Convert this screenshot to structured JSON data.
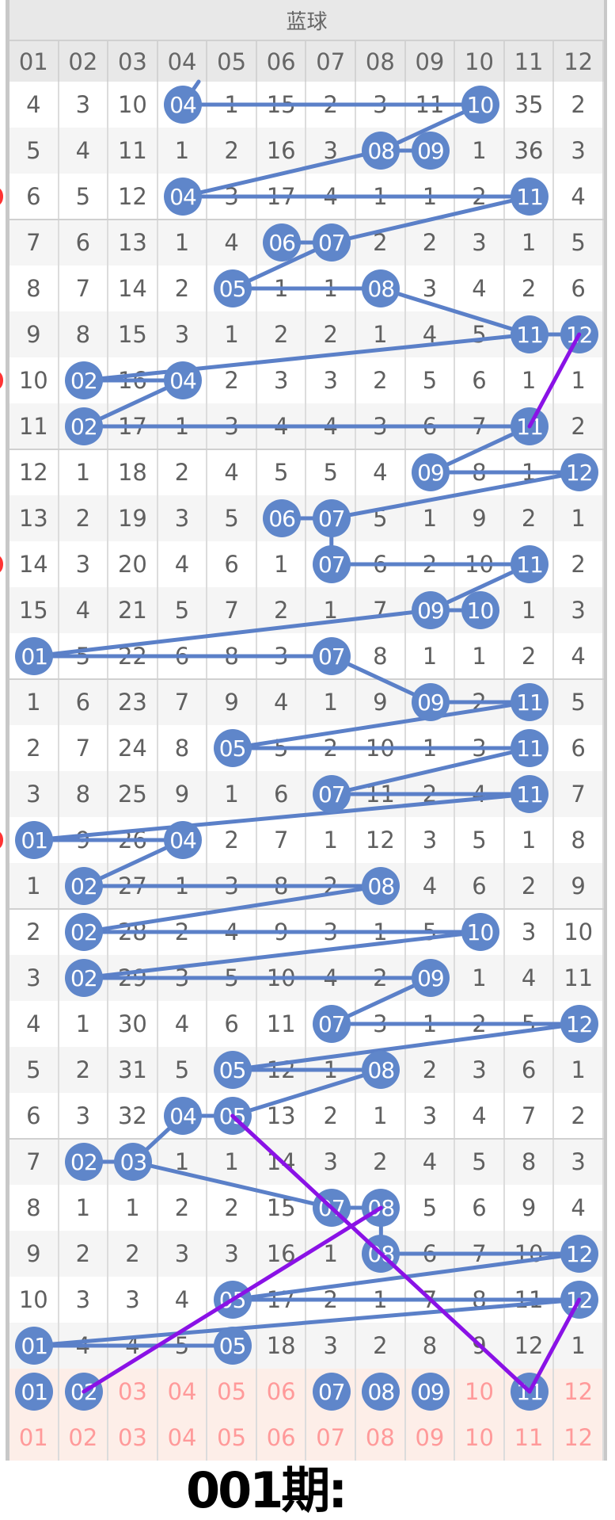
{
  "header": {
    "title": "蓝球",
    "columns": [
      "01",
      "02",
      "03",
      "04",
      "05",
      "06",
      "07",
      "08",
      "09",
      "10",
      "11",
      "12"
    ]
  },
  "colors": {
    "ball": "#5f86ca",
    "line": "#5b80c8",
    "trend": "#8a12e6",
    "pink_text": "#ff9a9a",
    "pink_bg": "#fdeee8"
  },
  "rows": [
    {
      "cells": [
        "4",
        "3",
        "10",
        "04",
        "1",
        "15",
        "2",
        "3",
        "11",
        "10",
        "35",
        "2"
      ],
      "balls": [
        4,
        10
      ]
    },
    {
      "cells": [
        "5",
        "4",
        "11",
        "1",
        "2",
        "16",
        "3",
        "08",
        "09",
        "1",
        "36",
        "3"
      ],
      "balls": [
        8,
        9
      ]
    },
    {
      "cells": [
        "6",
        "5",
        "12",
        "04",
        "3",
        "17",
        "4",
        "1",
        "1",
        "2",
        "11",
        "4"
      ],
      "balls": [
        4,
        11
      ]
    },
    {
      "cells": [
        "7",
        "6",
        "13",
        "1",
        "4",
        "06",
        "07",
        "2",
        "2",
        "3",
        "1",
        "5"
      ],
      "balls": [
        6,
        7
      ]
    },
    {
      "cells": [
        "8",
        "7",
        "14",
        "2",
        "05",
        "1",
        "1",
        "08",
        "3",
        "4",
        "2",
        "6"
      ],
      "balls": [
        5,
        8
      ]
    },
    {
      "cells": [
        "9",
        "8",
        "15",
        "3",
        "1",
        "2",
        "2",
        "1",
        "4",
        "5",
        "11",
        "12"
      ],
      "balls": [
        11,
        12
      ]
    },
    {
      "cells": [
        "10",
        "02",
        "16",
        "04",
        "2",
        "3",
        "3",
        "2",
        "5",
        "6",
        "1",
        "1"
      ],
      "balls": [
        2,
        4
      ]
    },
    {
      "cells": [
        "11",
        "02",
        "17",
        "1",
        "3",
        "4",
        "4",
        "3",
        "6",
        "7",
        "11",
        "2"
      ],
      "balls": [
        2,
        11
      ]
    },
    {
      "cells": [
        "12",
        "1",
        "18",
        "2",
        "4",
        "5",
        "5",
        "4",
        "09",
        "8",
        "1",
        "12"
      ],
      "balls": [
        9,
        12
      ]
    },
    {
      "cells": [
        "13",
        "2",
        "19",
        "3",
        "5",
        "06",
        "07",
        "5",
        "1",
        "9",
        "2",
        "1"
      ],
      "balls": [
        6,
        7
      ]
    },
    {
      "cells": [
        "14",
        "3",
        "20",
        "4",
        "6",
        "1",
        "07",
        "6",
        "2",
        "10",
        "11",
        "2"
      ],
      "balls": [
        7,
        11
      ]
    },
    {
      "cells": [
        "15",
        "4",
        "21",
        "5",
        "7",
        "2",
        "1",
        "7",
        "09",
        "10",
        "1",
        "3"
      ],
      "balls": [
        9,
        10
      ]
    },
    {
      "cells": [
        "01",
        "5",
        "22",
        "6",
        "8",
        "3",
        "07",
        "8",
        "1",
        "1",
        "2",
        "4"
      ],
      "balls": [
        1,
        7
      ]
    },
    {
      "cells": [
        "1",
        "6",
        "23",
        "7",
        "9",
        "4",
        "1",
        "9",
        "09",
        "2",
        "11",
        "5"
      ],
      "balls": [
        9,
        11
      ]
    },
    {
      "cells": [
        "2",
        "7",
        "24",
        "8",
        "05",
        "5",
        "2",
        "10",
        "1",
        "3",
        "11",
        "6"
      ],
      "balls": [
        5,
        11
      ]
    },
    {
      "cells": [
        "3",
        "8",
        "25",
        "9",
        "1",
        "6",
        "07",
        "11",
        "2",
        "4",
        "11",
        "7"
      ],
      "balls": [
        7,
        11
      ]
    },
    {
      "cells": [
        "01",
        "9",
        "26",
        "04",
        "2",
        "7",
        "1",
        "12",
        "3",
        "5",
        "1",
        "8"
      ],
      "balls": [
        1,
        4
      ]
    },
    {
      "cells": [
        "1",
        "02",
        "27",
        "1",
        "3",
        "8",
        "2",
        "08",
        "4",
        "6",
        "2",
        "9"
      ],
      "balls": [
        2,
        8
      ]
    },
    {
      "cells": [
        "2",
        "02",
        "28",
        "2",
        "4",
        "9",
        "3",
        "1",
        "5",
        "10",
        "3",
        "10"
      ],
      "balls": [
        2,
        10
      ]
    },
    {
      "cells": [
        "3",
        "02",
        "29",
        "3",
        "5",
        "10",
        "4",
        "2",
        "09",
        "1",
        "4",
        "11"
      ],
      "balls": [
        2,
        9
      ]
    },
    {
      "cells": [
        "4",
        "1",
        "30",
        "4",
        "6",
        "11",
        "07",
        "3",
        "1",
        "2",
        "5",
        "12"
      ],
      "balls": [
        7,
        12
      ]
    },
    {
      "cells": [
        "5",
        "2",
        "31",
        "5",
        "05",
        "12",
        "1",
        "08",
        "2",
        "3",
        "6",
        "1"
      ],
      "balls": [
        5,
        8
      ]
    },
    {
      "cells": [
        "6",
        "3",
        "32",
        "04",
        "05",
        "13",
        "2",
        "1",
        "3",
        "4",
        "7",
        "2"
      ],
      "balls": [
        4,
        5
      ]
    },
    {
      "cells": [
        "7",
        "02",
        "03",
        "1",
        "1",
        "14",
        "3",
        "2",
        "4",
        "5",
        "8",
        "3"
      ],
      "balls": [
        2,
        3
      ]
    },
    {
      "cells": [
        "8",
        "1",
        "1",
        "2",
        "2",
        "15",
        "07",
        "08",
        "5",
        "6",
        "9",
        "4"
      ],
      "balls": [
        7,
        8
      ]
    },
    {
      "cells": [
        "9",
        "2",
        "2",
        "3",
        "3",
        "16",
        "1",
        "08",
        "6",
        "7",
        "10",
        "12"
      ],
      "balls": [
        8,
        12
      ]
    },
    {
      "cells": [
        "10",
        "3",
        "3",
        "4",
        "05",
        "17",
        "2",
        "1",
        "7",
        "8",
        "11",
        "12"
      ],
      "balls": [
        5,
        12
      ]
    },
    {
      "cells": [
        "01",
        "4",
        "4",
        "5",
        "05",
        "18",
        "3",
        "2",
        "8",
        "9",
        "12",
        "1"
      ],
      "balls": [
        1,
        5
      ]
    }
  ],
  "selection_row": {
    "cells": [
      "01",
      "02",
      "03",
      "04",
      "05",
      "06",
      "07",
      "08",
      "09",
      "10",
      "11",
      "12"
    ],
    "balls": [
      1,
      2,
      7,
      8,
      9,
      11
    ]
  },
  "number_row": {
    "cells": [
      "01",
      "02",
      "03",
      "04",
      "05",
      "06",
      "07",
      "08",
      "09",
      "10",
      "11",
      "12"
    ]
  },
  "overlay_label": "001期:"
}
